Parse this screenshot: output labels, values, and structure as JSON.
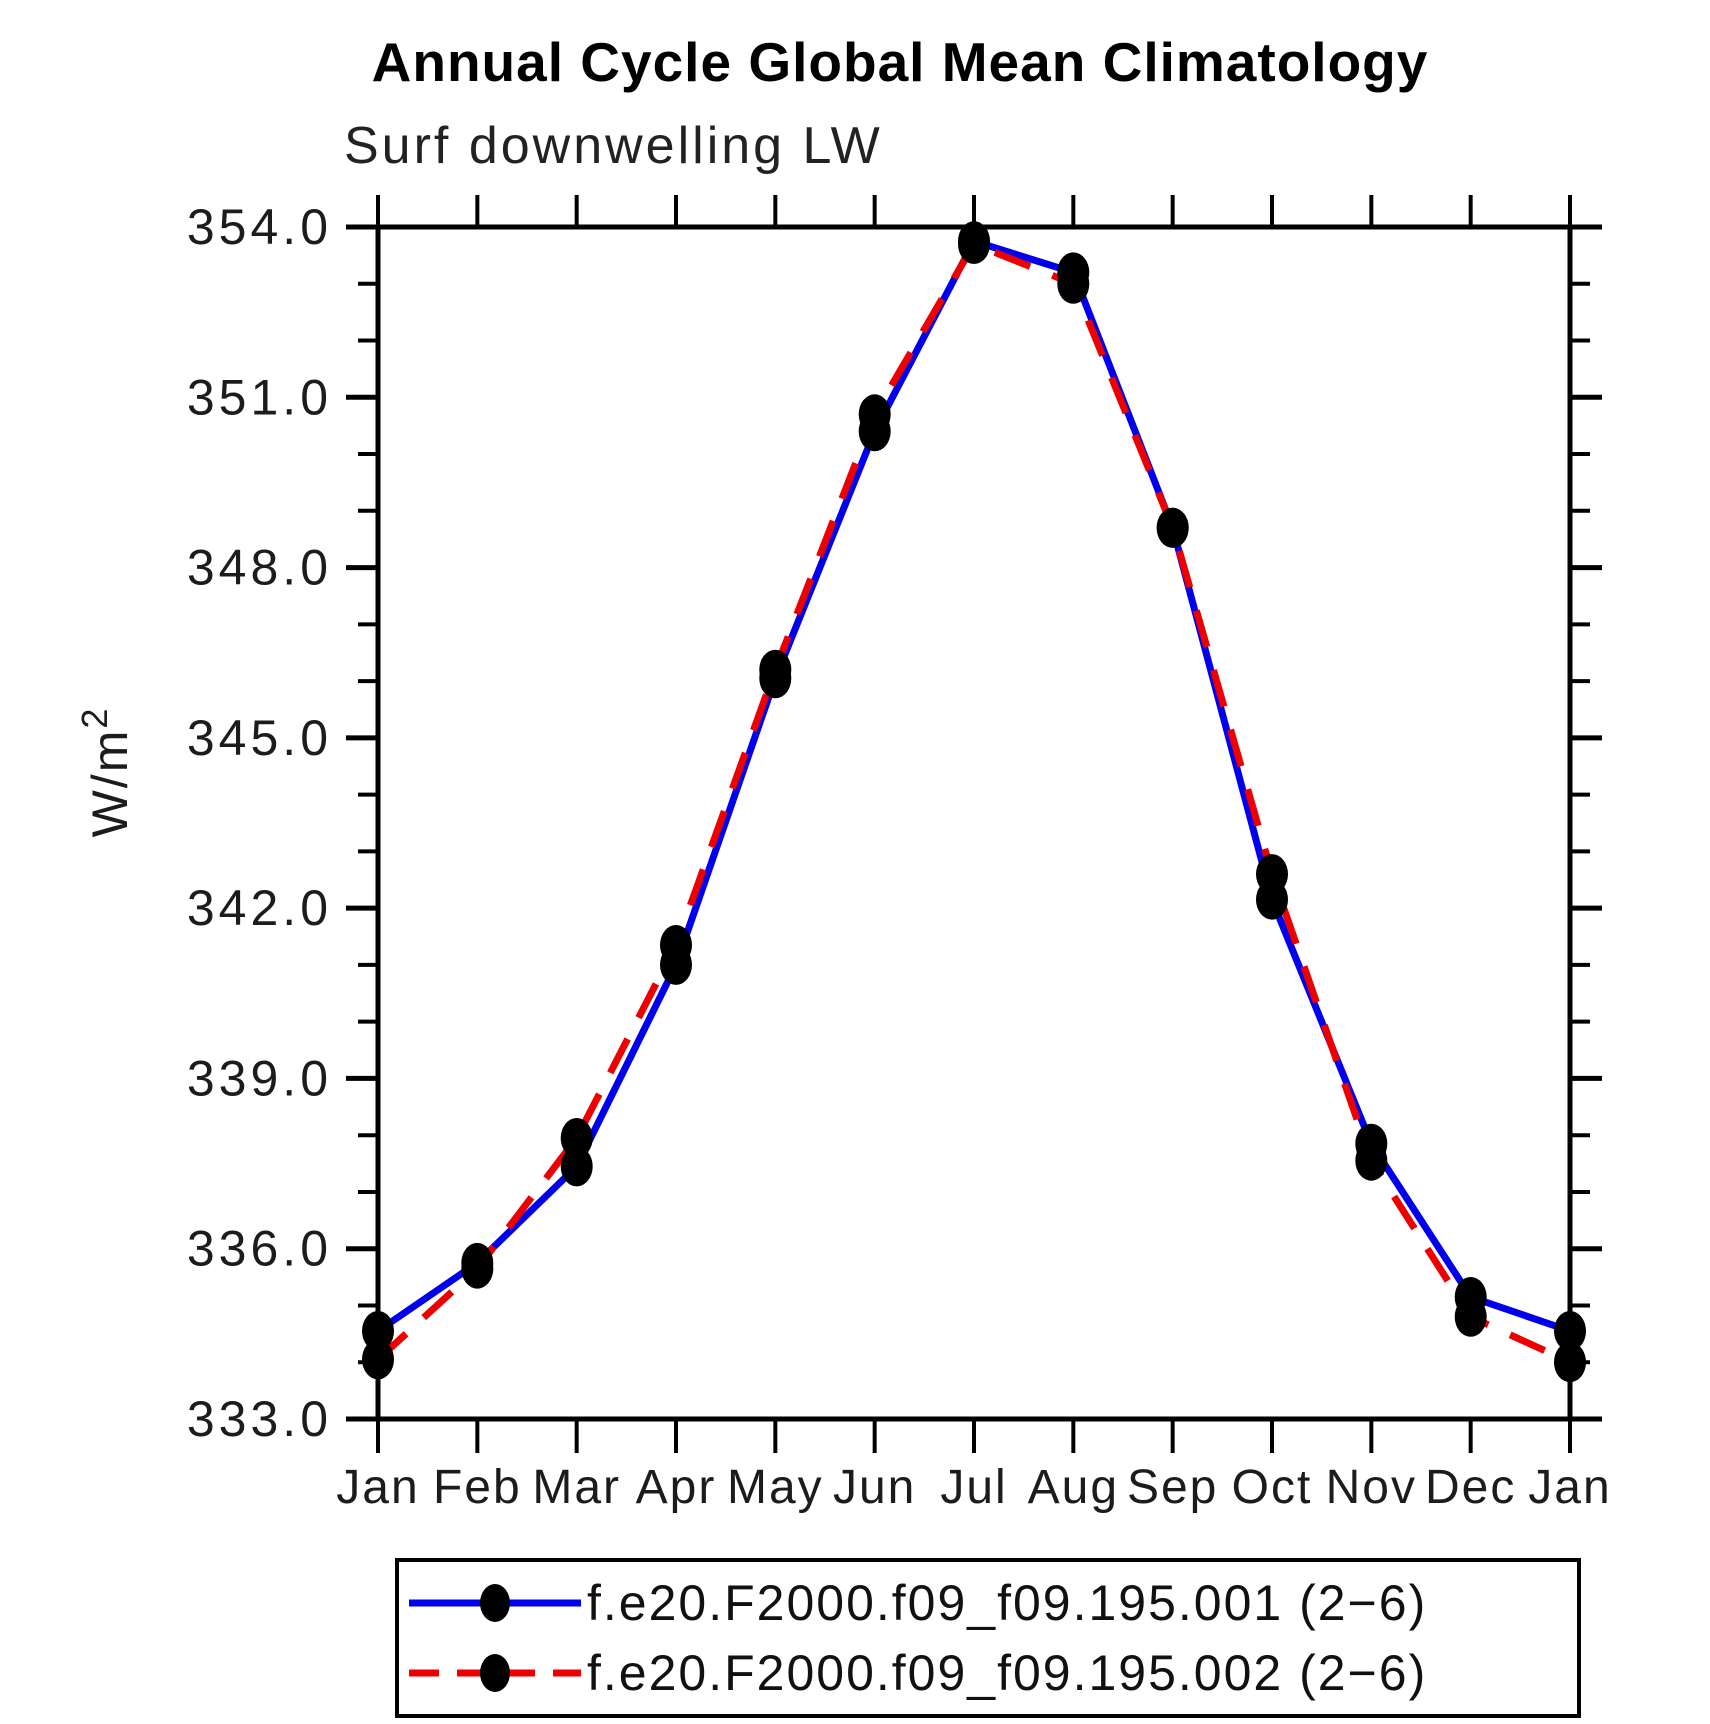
{
  "header": {
    "title": "Annual Cycle Global Mean Climatology",
    "subtitle": "Surf downwelling LW"
  },
  "chart_data": {
    "type": "line",
    "title": "Annual Cycle Global Mean Climatology",
    "subtitle": "Surf downwelling LW",
    "xlabel": "",
    "ylabel": "W/m²",
    "x_categories": [
      "Jan",
      "Feb",
      "Mar",
      "Apr",
      "May",
      "Jun",
      "Jul",
      "Aug",
      "Sep",
      "Oct",
      "Nov",
      "Dec",
      "Jan"
    ],
    "ylim": [
      333.0,
      354.0
    ],
    "y_major_tick_step": 3.0,
    "y_minor_tick_step": 1.0,
    "y_tick_labels": [
      "333.0",
      "336.0",
      "339.0",
      "342.0",
      "345.0",
      "348.0",
      "351.0",
      "354.0"
    ],
    "grid": false,
    "legend_position": "bottom",
    "marker_color": "#000000",
    "axis_color": "#000000",
    "series": [
      {
        "name": "f.e20.F2000.f09_f09.195.001 (2−6)",
        "color": "#0000ee",
        "line_style": "solid",
        "marker": "filled-dot",
        "values": [
          334.55,
          335.75,
          337.45,
          341.0,
          346.05,
          350.4,
          353.75,
          353.2,
          348.7,
          342.15,
          337.85,
          335.15,
          334.55
        ]
      },
      {
        "name": "f.e20.F2000.f09_f09.195.002 (2−6)",
        "color": "#ee0000",
        "line_style": "dashed",
        "marker": "filled-dot",
        "values": [
          334.05,
          335.65,
          337.95,
          341.35,
          346.2,
          350.7,
          353.7,
          353.0,
          348.7,
          342.6,
          337.55,
          334.8,
          334.0
        ]
      }
    ]
  }
}
